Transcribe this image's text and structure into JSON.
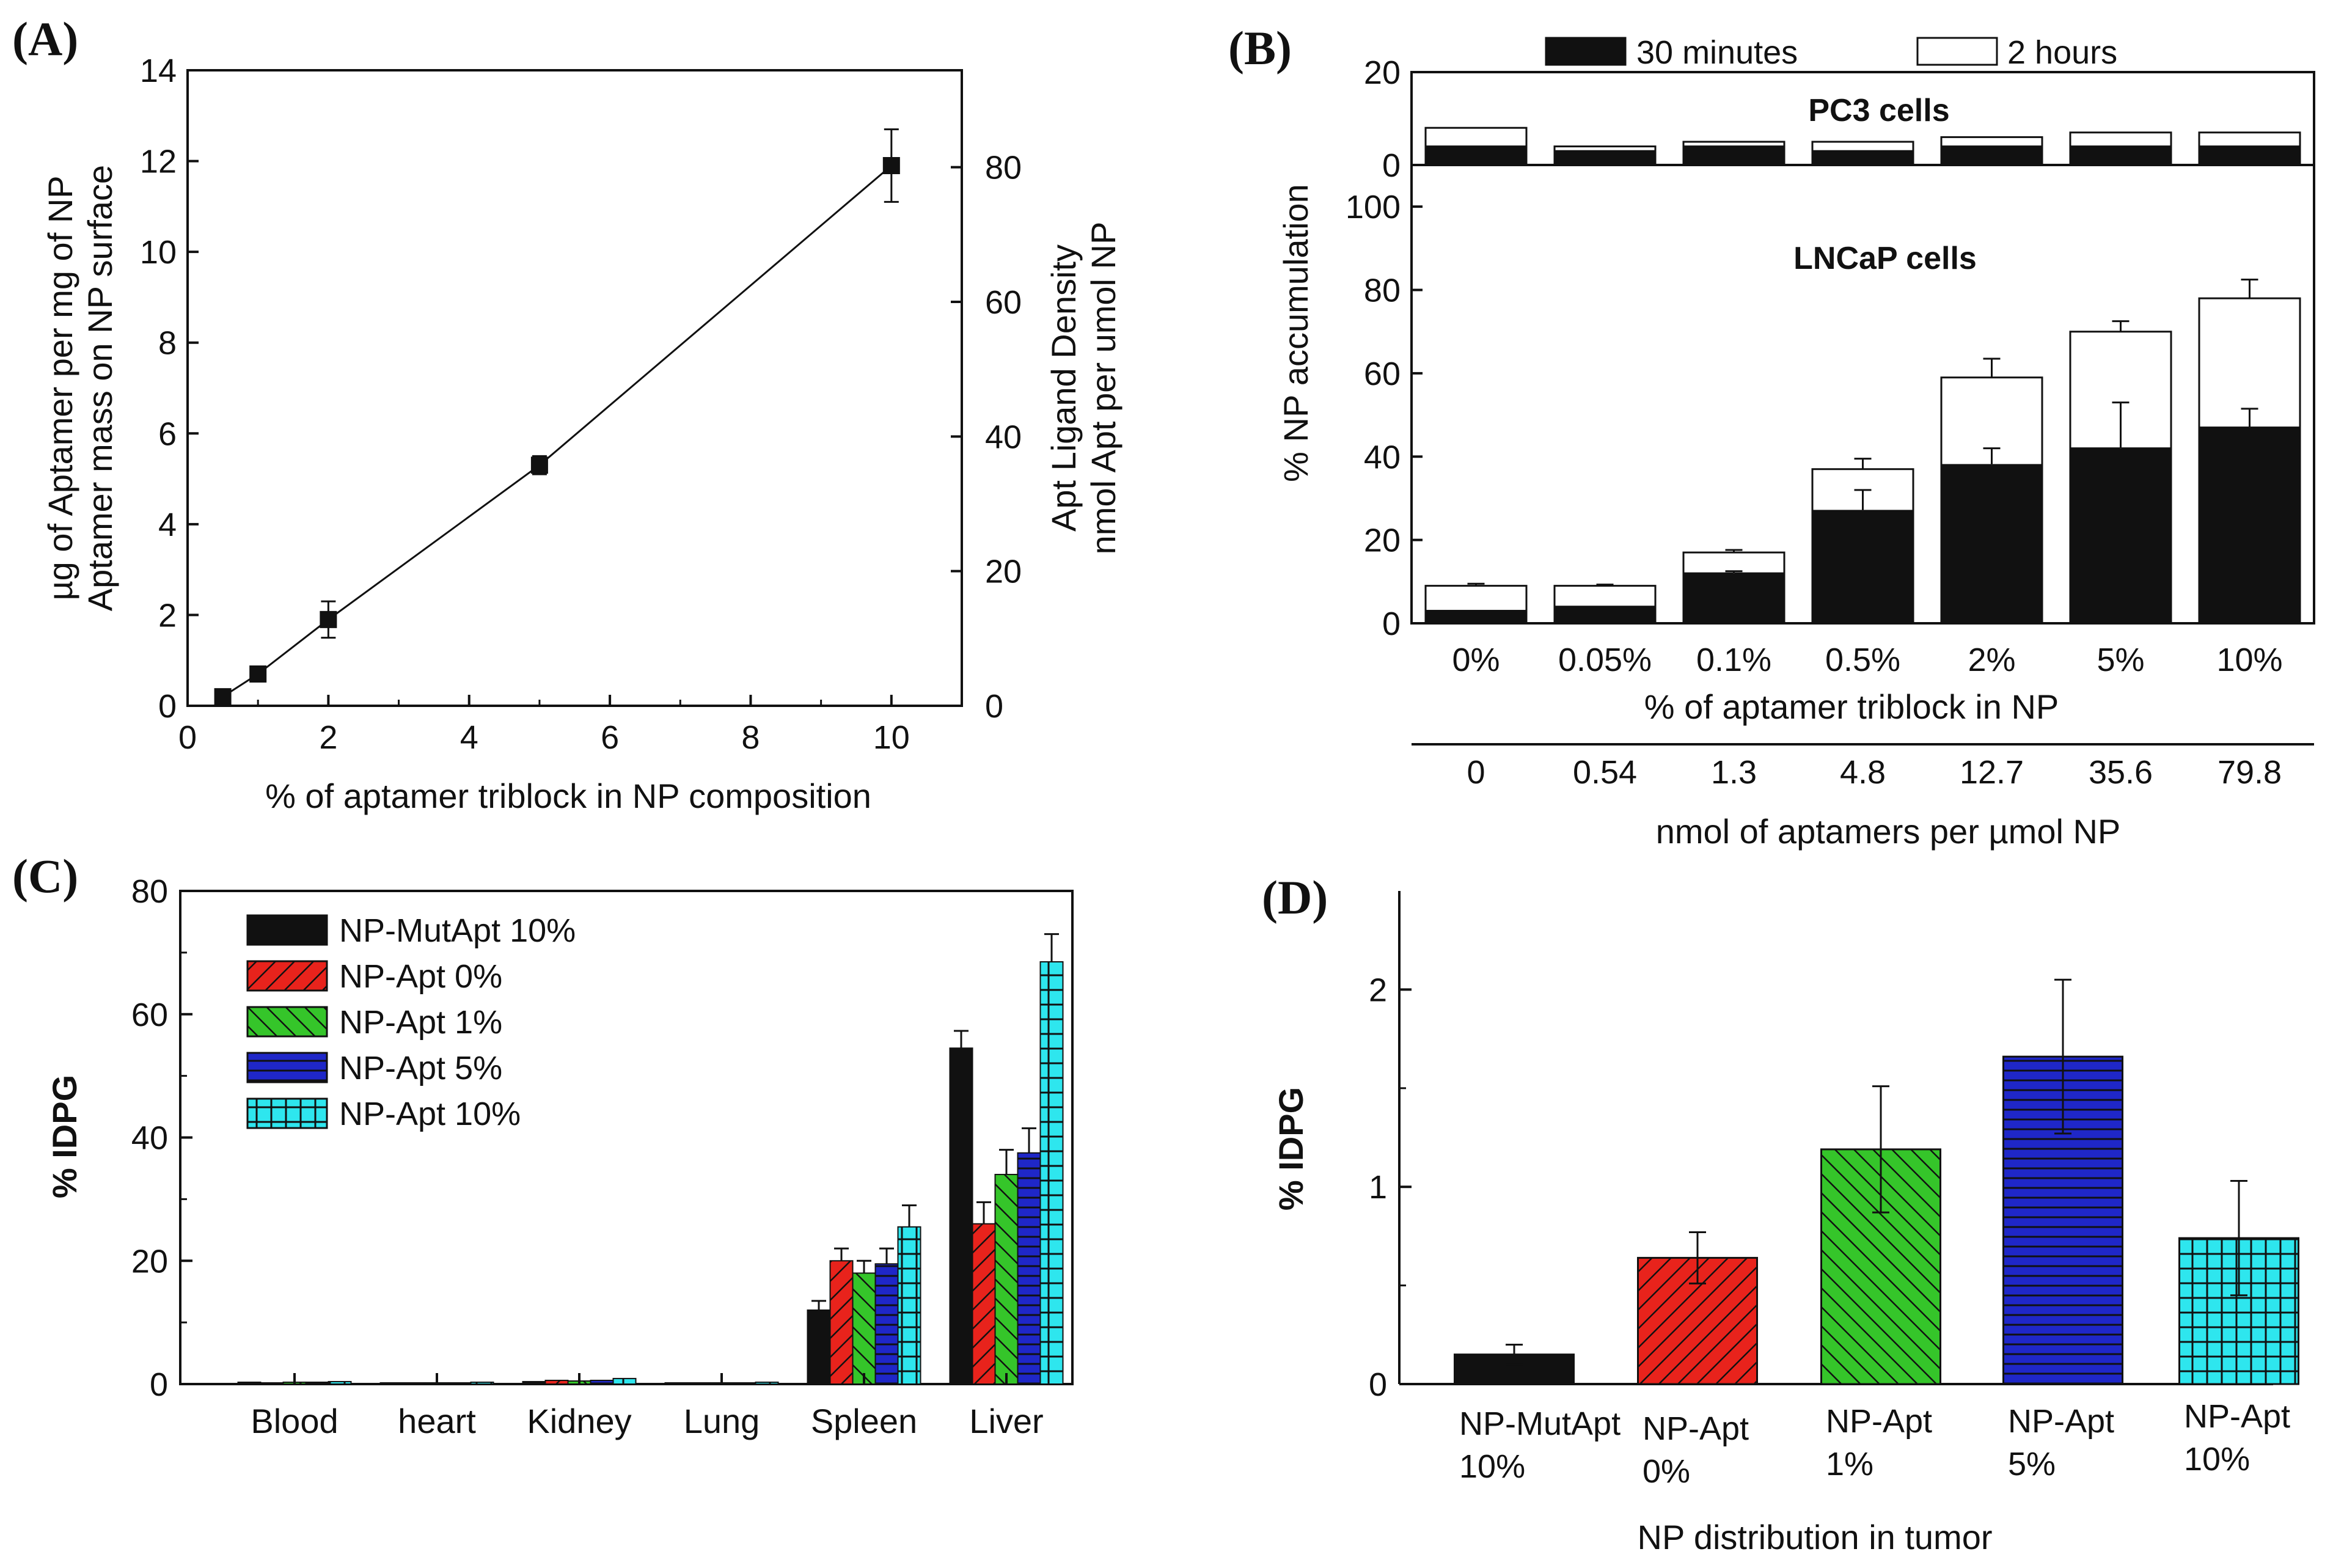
{
  "chart_data": [
    {
      "panel": "(A)",
      "type": "line",
      "xlabel": "% of aptamer triblock in NP composition",
      "ylabel": [
        "µg of Aptamer per mg of NP",
        "Aptamer mass on NP surface"
      ],
      "y2label": [
        "Apt Ligand Density",
        "nmol Apt per umol NP"
      ],
      "xlim": [
        0,
        11
      ],
      "ylim": [
        0,
        14
      ],
      "y2lim": [
        0,
        94.4
      ],
      "xticks": [
        "0",
        "2",
        "4",
        "6",
        "8",
        "10"
      ],
      "yticks": [
        "0",
        "2",
        "4",
        "6",
        "8",
        "10",
        "12",
        "14"
      ],
      "y2ticks": [
        "0",
        "20",
        "40",
        "60",
        "80"
      ],
      "series": [
        {
          "name": "aptamer mass",
          "x": [
            0.5,
            1,
            2,
            5,
            10
          ],
          "y": [
            0.2,
            0.7,
            1.9,
            5.3,
            11.9
          ],
          "err": [
            0.05,
            0.1,
            0.4,
            0.2,
            0.8
          ]
        }
      ]
    },
    {
      "panel": "(B)",
      "type": "bar",
      "subtype": "stacked",
      "legend": [
        "30 minutes",
        "2 hours"
      ],
      "ylabel": "% NP accumulation",
      "xlabel": "% of aptamer triblock in NP",
      "xlabel2": "nmol of aptamers per µmol NP",
      "categories": [
        "0%",
        "0.05%",
        "0.1%",
        "0.5%",
        "2%",
        "5%",
        "10%"
      ],
      "categories2": [
        "0",
        "0.54",
        "1.3",
        "4.8",
        "12.7",
        "35.6",
        "79.8"
      ],
      "subpanels": [
        {
          "title": "PC3 cells",
          "ylim": [
            0,
            20
          ],
          "yticks": [
            "0",
            "20"
          ],
          "series": [
            {
              "name": "30 minutes",
              "values": [
                4,
                3,
                4,
                3,
                4,
                4,
                4
              ]
            },
            {
              "name": "2 hours",
              "values": [
                8,
                4,
                5,
                5,
                6,
                7,
                7
              ]
            }
          ]
        },
        {
          "title": "LNCaP cells",
          "ylim": [
            0,
            110
          ],
          "yticks": [
            "0",
            "20",
            "40",
            "60",
            "80",
            "100"
          ],
          "series": [
            {
              "name": "30 minutes",
              "values": [
                3,
                4,
                12,
                27,
                38,
                42,
                47
              ],
              "err": [
                0,
                0,
                0.5,
                5,
                4,
                11,
                4.5
              ]
            },
            {
              "name": "2 hours",
              "values": [
                9,
                9,
                17,
                37,
                59,
                70,
                78
              ],
              "err": [
                0.5,
                0.3,
                0.6,
                2.5,
                4.5,
                2.5,
                4.5
              ]
            }
          ]
        }
      ]
    },
    {
      "panel": "(C)",
      "type": "bar",
      "ylabel": "% IDPG",
      "ylim": [
        0,
        80
      ],
      "yticks": [
        "0",
        "20",
        "40",
        "60",
        "80"
      ],
      "categories": [
        "Blood",
        "heart",
        "Kidney",
        "Lung",
        "Spleen",
        "Liver"
      ],
      "series": [
        {
          "name": "NP-MutApt 10%",
          "color": "#111111",
          "pattern": "solid",
          "values": [
            0.3,
            0.2,
            0.4,
            0.2,
            12,
            54.5
          ],
          "err": [
            0,
            0,
            0,
            0,
            1.5,
            2.8
          ]
        },
        {
          "name": "NP-Apt 0%",
          "color": "#e8231c",
          "pattern": "diagonal",
          "values": [
            0.2,
            0.2,
            0.6,
            0.2,
            20,
            26
          ],
          "err": [
            0,
            0,
            0.1,
            0,
            2,
            3.5
          ]
        },
        {
          "name": "NP-Apt 1%",
          "color": "#35c52a",
          "pattern": "diagonal",
          "values": [
            0.3,
            0.2,
            0.5,
            0.2,
            18,
            34
          ],
          "err": [
            0,
            0,
            0.1,
            0,
            2,
            4
          ]
        },
        {
          "name": "NP-Apt 5%",
          "color": "#1f27c8",
          "pattern": "horizontal",
          "values": [
            0.3,
            0.2,
            0.6,
            0.2,
            19.5,
            37.5
          ],
          "err": [
            0,
            0,
            0.1,
            0,
            2.5,
            4
          ]
        },
        {
          "name": "NP-Apt 10%",
          "color": "#2ee6ee",
          "pattern": "grid",
          "values": [
            0.4,
            0.3,
            0.9,
            0.3,
            25.5,
            68.5
          ],
          "err": [
            0,
            0,
            0.1,
            0,
            3.5,
            4.5
          ]
        }
      ]
    },
    {
      "panel": "(D)",
      "type": "bar",
      "ylabel": "% IDPG",
      "xlabel": "NP distribution in tumor",
      "ylim": [
        0,
        2.5
      ],
      "yticks": [
        "0",
        "1",
        "2"
      ],
      "categories": [
        [
          "NP-MutApt",
          "10%"
        ],
        [
          "NP-Apt",
          "0%"
        ],
        [
          "NP-Apt",
          "1%"
        ],
        [
          "NP-Apt",
          "5%"
        ],
        [
          "NP-Apt",
          "10%"
        ]
      ],
      "values": [
        0.15,
        0.64,
        1.19,
        1.66,
        0.74
      ],
      "err": [
        0.05,
        0.13,
        0.32,
        0.39,
        0.29
      ],
      "colors": [
        "#111111",
        "#e8231c",
        "#35c52a",
        "#1f27c8",
        "#2ee6ee"
      ],
      "patterns": [
        "solid",
        "diagonal",
        "diagonal",
        "horizontal",
        "grid"
      ]
    }
  ]
}
